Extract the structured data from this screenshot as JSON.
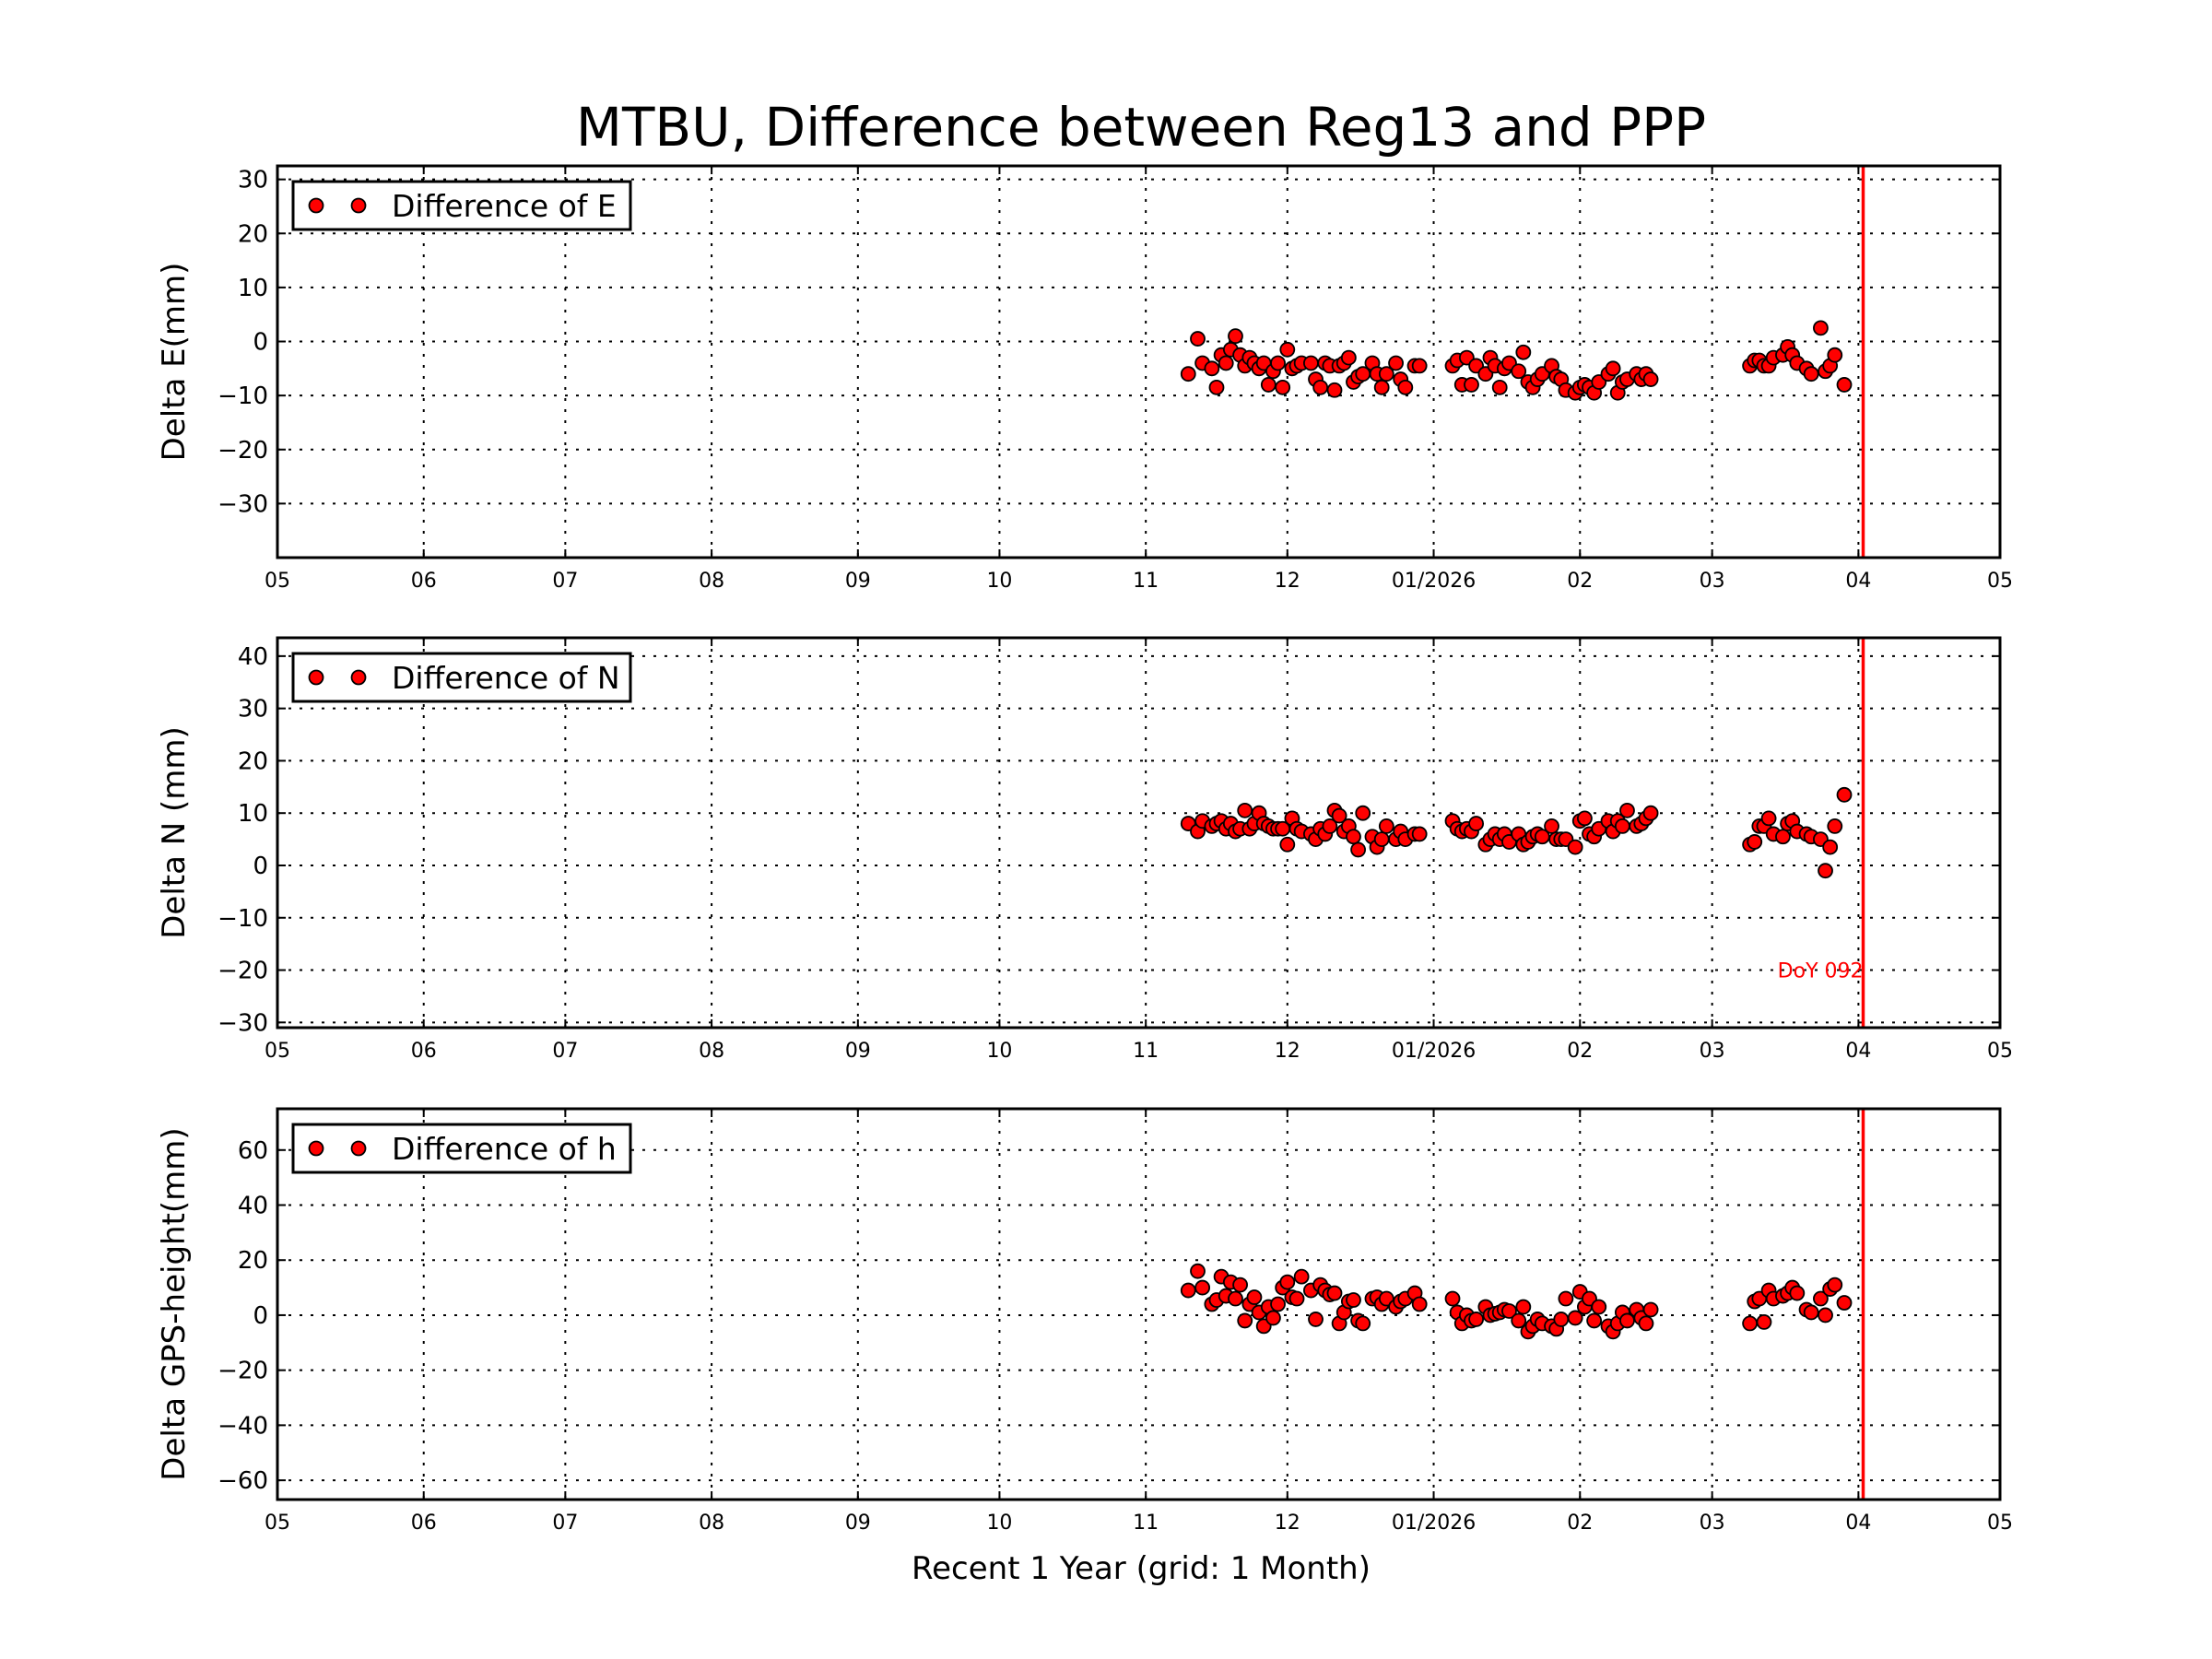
{
  "title": "MTBU, Difference between Reg13 and PPP",
  "colors": {
    "marker": "#ff0000",
    "marker_edge": "#000000",
    "vline": "#ff0000",
    "annotation": "#ff0000"
  },
  "chart_data": [
    {
      "type": "scatter",
      "ylabel": "Delta E(mm)",
      "legend": "Difference of E",
      "legend_position": "top-left",
      "ylim": [
        -40,
        32.5
      ],
      "yticks": [
        -30,
        -20,
        -10,
        0,
        10,
        20,
        30
      ],
      "value_key": "E",
      "grid": true
    },
    {
      "type": "scatter",
      "ylabel": "Delta N (mm)",
      "legend": "Difference of N",
      "legend_position": "top-left",
      "ylim": [
        -31,
        43.5
      ],
      "yticks": [
        -30,
        -20,
        -10,
        0,
        10,
        20,
        30,
        40
      ],
      "value_key": "N",
      "grid": true,
      "annotation": {
        "text": "DoY 092",
        "x": "2026-04-02",
        "y": -20
      }
    },
    {
      "type": "scatter",
      "ylabel": "Delta GPS-height(mm)",
      "legend": "Difference of h",
      "legend_position": "top-left",
      "ylim": [
        -67,
        75
      ],
      "yticks": [
        -60,
        -40,
        -20,
        0,
        20,
        40,
        60
      ],
      "value_key": "h",
      "grid": true
    }
  ],
  "xaxis": {
    "label": "Recent 1 Year (grid: 1 Month)",
    "xlim": [
      "2025-05-01",
      "2026-05-01"
    ],
    "ticks": [
      {
        "date": "2025-05-01",
        "label": "05"
      },
      {
        "date": "2025-06-01",
        "label": "06"
      },
      {
        "date": "2025-07-01",
        "label": "07"
      },
      {
        "date": "2025-08-01",
        "label": "08"
      },
      {
        "date": "2025-09-01",
        "label": "09"
      },
      {
        "date": "2025-10-01",
        "label": "10"
      },
      {
        "date": "2025-11-01",
        "label": "11"
      },
      {
        "date": "2025-12-01",
        "label": "12"
      },
      {
        "date": "2026-01-01",
        "label": "01/2026"
      },
      {
        "date": "2026-02-01",
        "label": "02"
      },
      {
        "date": "2026-03-01",
        "label": "03"
      },
      {
        "date": "2026-04-01",
        "label": "04"
      },
      {
        "date": "2026-05-01",
        "label": "05"
      }
    ],
    "vline": "2026-04-02"
  },
  "series": {
    "dates": [
      "2025-11-10",
      "2025-11-12",
      "2025-11-13",
      "2025-11-15",
      "2025-11-16",
      "2025-11-17",
      "2025-11-18",
      "2025-11-19",
      "2025-11-20",
      "2025-11-21",
      "2025-11-22",
      "2025-11-23",
      "2025-11-24",
      "2025-11-25",
      "2025-11-26",
      "2025-11-27",
      "2025-11-28",
      "2025-11-29",
      "2025-11-30",
      "2025-12-01",
      "2025-12-02",
      "2025-12-03",
      "2025-12-04",
      "2025-12-06",
      "2025-12-07",
      "2025-12-08",
      "2025-12-09",
      "2025-12-10",
      "2025-12-11",
      "2025-12-12",
      "2025-12-13",
      "2025-12-14",
      "2025-12-15",
      "2025-12-16",
      "2025-12-17",
      "2025-12-19",
      "2025-12-20",
      "2025-12-21",
      "2025-12-22",
      "2025-12-24",
      "2025-12-25",
      "2025-12-26",
      "2025-12-28",
      "2025-12-29",
      "2026-01-05",
      "2026-01-06",
      "2026-01-07",
      "2026-01-08",
      "2026-01-09",
      "2026-01-10",
      "2026-01-12",
      "2026-01-13",
      "2026-01-14",
      "2026-01-15",
      "2026-01-16",
      "2026-01-17",
      "2026-01-19",
      "2026-01-20",
      "2026-01-21",
      "2026-01-22",
      "2026-01-23",
      "2026-01-24",
      "2026-01-26",
      "2026-01-27",
      "2026-01-28",
      "2026-01-29",
      "2026-01-31",
      "2026-02-01",
      "2026-02-02",
      "2026-02-03",
      "2026-02-04",
      "2026-02-05",
      "2026-02-07",
      "2026-02-08",
      "2026-02-09",
      "2026-02-10",
      "2026-02-11",
      "2026-02-13",
      "2026-02-14",
      "2026-02-15",
      "2026-02-16",
      "2026-03-09",
      "2026-03-10",
      "2026-03-11",
      "2026-03-12",
      "2026-03-13",
      "2026-03-14",
      "2026-03-16",
      "2026-03-17",
      "2026-03-18",
      "2026-03-19",
      "2026-03-21",
      "2026-03-22",
      "2026-03-24",
      "2026-03-25",
      "2026-03-26",
      "2026-03-27",
      "2026-03-29"
    ],
    "E": [
      -6,
      0.5,
      -4,
      -5,
      -8.5,
      -2.5,
      -4,
      -1.5,
      1,
      -2.5,
      -4.5,
      -3,
      -4,
      -5,
      -4,
      -8,
      -5.5,
      -4,
      -8.5,
      -1.5,
      -5,
      -4.5,
      -4,
      -4,
      -7,
      -8.5,
      -4,
      -4.5,
      -9,
      -4.5,
      -4,
      -3,
      -7.5,
      -6.5,
      -6,
      -4,
      -6,
      -8.5,
      -6,
      -4,
      -7,
      -8.5,
      -4.5,
      -4.5,
      -4.5,
      -3.5,
      -8,
      -3,
      -8,
      -4.5,
      -6,
      -3,
      -4.5,
      -8.5,
      -5,
      -4,
      -5.5,
      -2,
      -7.5,
      -8.5,
      -7,
      -6,
      -4.5,
      -6.5,
      -7,
      -9,
      -9.5,
      -8.5,
      -8,
      -8.5,
      -9.5,
      -7.5,
      -6,
      -5,
      -9.5,
      -7.5,
      -7,
      -6,
      -7,
      -6,
      -7,
      -4.5,
      -3.5,
      -3.5,
      -4.5,
      -4.5,
      -3,
      -2.5,
      -1,
      -2.5,
      -4,
      -5,
      -6,
      2.5,
      -5.5,
      -4.5,
      -2.5,
      -8
    ],
    "N": [
      8,
      6.5,
      8.5,
      7.5,
      8,
      8.5,
      7,
      8,
      6.5,
      7,
      10.5,
      7,
      8,
      10,
      8,
      7.5,
      7,
      7,
      7,
      4,
      9,
      7,
      6.5,
      6,
      5,
      7,
      6,
      7.5,
      10.5,
      9.5,
      6.5,
      7.5,
      5.5,
      3,
      10,
      5.5,
      3.5,
      5,
      7.5,
      5,
      6.5,
      5,
      6,
      6,
      8.5,
      7,
      6.5,
      7,
      6.5,
      8,
      4,
      5,
      6,
      5,
      6,
      4.5,
      6,
      4,
      4.5,
      5.5,
      6,
      5.5,
      7.5,
      5,
      5,
      5,
      3.5,
      8.5,
      9,
      6,
      5.5,
      7,
      8.5,
      6.5,
      8.5,
      7.5,
      10.5,
      7.5,
      8,
      9,
      10,
      4,
      4.5,
      7.5,
      7.5,
      9,
      6,
      5.5,
      8,
      8.5,
      6.5,
      6,
      5.5,
      5,
      -1,
      3.5,
      7.5,
      13.5
    ],
    "h": [
      9,
      16,
      10,
      4,
      5.5,
      14,
      7,
      12,
      6,
      11,
      -2,
      4,
      6.5,
      1,
      -4,
      3,
      -1,
      4,
      10,
      12,
      6.5,
      6,
      14,
      9,
      -1.5,
      11,
      9,
      7.5,
      8,
      -3,
      1,
      5,
      5.5,
      -2,
      -3,
      6,
      6.5,
      4,
      6,
      3,
      5,
      6,
      8,
      4,
      6,
      1,
      -3,
      0,
      -2,
      -1.5,
      3,
      0,
      0.5,
      1,
      2,
      1.5,
      -2,
      3,
      -6,
      -4,
      -1.5,
      -3,
      -4,
      -5,
      -1.5,
      6,
      -1,
      8.5,
      3,
      6,
      -2,
      3,
      -4,
      -6,
      -3,
      1,
      -2,
      2,
      -1,
      -3,
      2,
      -3,
      5,
      6,
      -2.5,
      9,
      6,
      7,
      8,
      10,
      8,
      2,
      1,
      6,
      0,
      9.5,
      11,
      4.5
    ]
  }
}
